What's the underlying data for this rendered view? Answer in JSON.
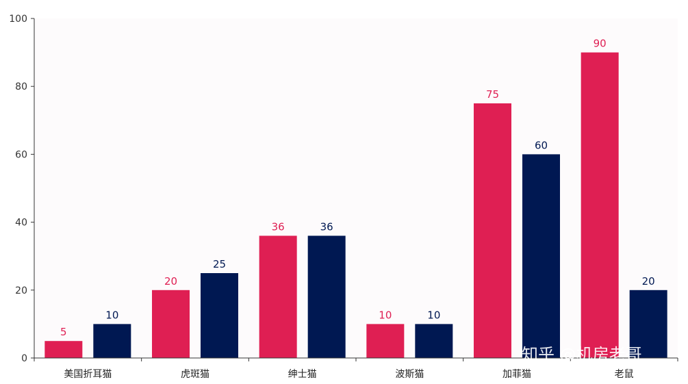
{
  "chart_data": {
    "type": "bar",
    "categories": [
      "美国折耳猫",
      "虎斑猫",
      "绅士猫",
      "波斯猫",
      "加菲猫",
      "老鼠"
    ],
    "series": [
      {
        "values": [
          5,
          20,
          36,
          10,
          75,
          90
        ],
        "color": "#df1f53"
      },
      {
        "values": [
          10,
          25,
          36,
          10,
          60,
          20
        ],
        "color": "#001852"
      }
    ],
    "ylim": [
      0,
      100
    ],
    "yticks": [
      0,
      20,
      40,
      60,
      80,
      100
    ],
    "ytick_labels": [
      "0",
      "20",
      "40",
      "60",
      "80",
      "100"
    ],
    "grid": false,
    "data_labels": true,
    "title": "",
    "xlabel": "",
    "ylabel": ""
  },
  "watermark": "知乎 @机房老哥"
}
